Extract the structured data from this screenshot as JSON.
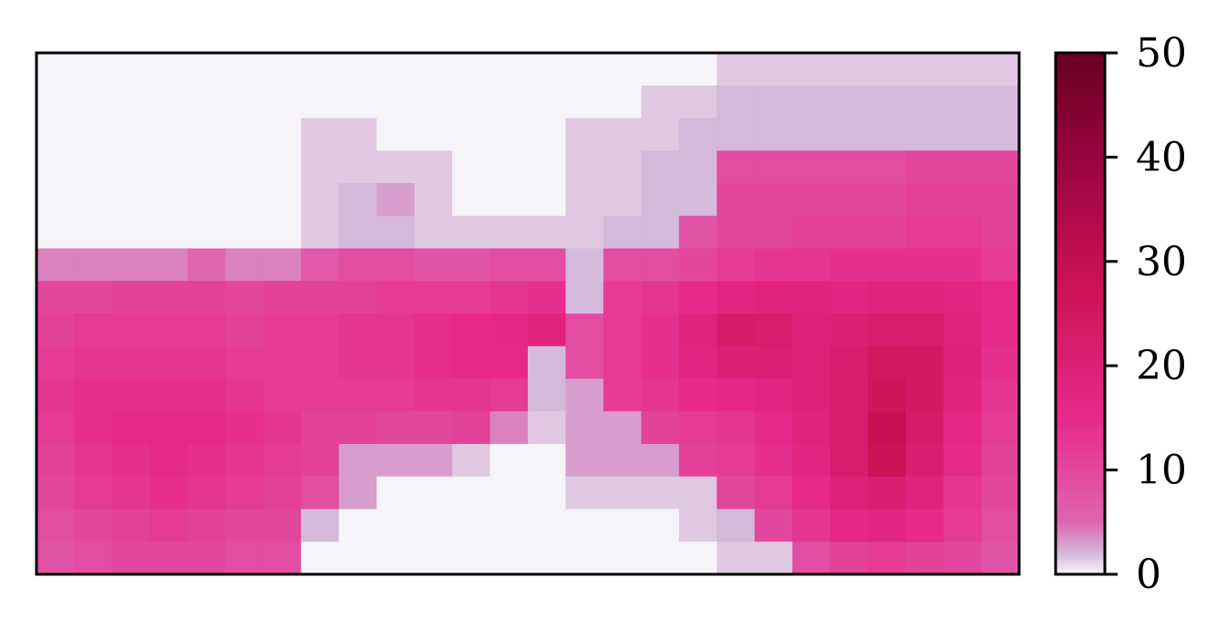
{
  "chart_data": {
    "type": "heatmap",
    "title": "",
    "xlabel": "",
    "ylabel": "",
    "x_ticks_visible": false,
    "y_ticks_visible": false,
    "colormap": "PuRd",
    "colorbar": {
      "range": [
        0,
        50
      ],
      "ticks": [
        "0",
        "10",
        "20",
        "30",
        "40",
        "50"
      ],
      "tick_values": [
        0,
        10,
        20,
        30,
        40,
        50
      ]
    },
    "grid": [
      [
        0,
        0,
        0,
        0,
        0,
        0,
        0,
        0,
        0,
        0,
        0,
        0,
        0,
        0,
        0,
        0,
        0,
        0,
        1,
        1,
        1,
        1,
        1,
        1,
        1,
        1
      ],
      [
        0,
        0,
        0,
        0,
        0,
        0,
        0,
        0,
        0,
        0,
        0,
        0,
        0,
        0,
        0,
        0,
        1,
        1,
        2,
        2,
        2,
        2,
        2,
        2,
        2,
        2
      ],
      [
        0,
        0,
        0,
        0,
        0,
        0,
        0,
        1,
        1,
        0,
        0,
        0,
        0,
        0,
        1,
        1,
        1,
        2,
        2,
        2,
        2,
        2,
        2,
        2,
        2,
        2
      ],
      [
        0,
        0,
        0,
        0,
        0,
        0,
        0,
        1,
        1,
        1,
        1,
        0,
        0,
        0,
        1,
        1,
        2,
        2,
        9,
        9,
        9,
        9,
        9,
        10,
        10,
        10
      ],
      [
        0,
        0,
        0,
        0,
        0,
        0,
        0,
        1,
        2,
        3,
        1,
        0,
        0,
        0,
        1,
        1,
        2,
        2,
        10,
        10,
        10,
        10,
        10,
        11,
        11,
        11
      ],
      [
        0,
        0,
        0,
        0,
        0,
        0,
        0,
        1,
        2,
        2,
        1,
        1,
        1,
        1,
        1,
        2,
        2,
        8,
        10,
        10,
        11,
        11,
        11,
        12,
        12,
        11
      ],
      [
        4,
        4,
        4,
        4,
        5,
        4,
        4,
        7,
        9,
        9,
        8,
        8,
        9,
        9,
        2,
        9,
        9,
        10,
        12,
        13,
        13,
        14,
        14,
        14,
        14,
        12
      ],
      [
        10,
        10,
        11,
        11,
        11,
        10,
        11,
        11,
        11,
        12,
        12,
        12,
        13,
        14,
        2,
        12,
        13,
        15,
        17,
        18,
        18,
        17,
        18,
        18,
        17,
        15
      ],
      [
        11,
        12,
        12,
        12,
        12,
        11,
        12,
        12,
        13,
        13,
        14,
        15,
        16,
        18,
        9,
        12,
        14,
        18,
        23,
        22,
        19,
        20,
        22,
        22,
        18,
        15
      ],
      [
        12,
        13,
        13,
        13,
        13,
        12,
        12,
        12,
        13,
        13,
        14,
        15,
        15,
        2,
        9,
        12,
        14,
        17,
        20,
        20,
        19,
        22,
        25,
        24,
        19,
        14
      ],
      [
        13,
        14,
        14,
        14,
        14,
        13,
        12,
        12,
        12,
        12,
        13,
        13,
        12,
        2,
        3,
        12,
        13,
        15,
        16,
        17,
        19,
        22,
        26,
        24,
        18,
        13
      ],
      [
        12,
        14,
        15,
        15,
        15,
        14,
        13,
        11,
        11,
        10,
        10,
        11,
        4,
        1,
        3,
        3,
        11,
        12,
        13,
        15,
        18,
        22,
        29,
        23,
        16,
        12
      ],
      [
        11,
        13,
        14,
        15,
        14,
        13,
        12,
        11,
        3,
        3,
        3,
        1,
        0,
        0,
        3,
        3,
        3,
        11,
        12,
        14,
        17,
        22,
        28,
        21,
        15,
        11
      ],
      [
        10,
        12,
        13,
        14,
        13,
        12,
        11,
        9,
        3,
        0,
        0,
        0,
        0,
        0,
        1,
        1,
        1,
        1,
        10,
        12,
        15,
        19,
        21,
        18,
        13,
        10
      ],
      [
        9,
        10,
        11,
        12,
        11,
        10,
        10,
        2,
        0,
        0,
        0,
        0,
        0,
        0,
        0,
        0,
        0,
        1,
        2,
        10,
        13,
        16,
        17,
        15,
        12,
        9
      ],
      [
        8,
        9,
        10,
        10,
        10,
        9,
        9,
        0,
        0,
        0,
        0,
        0,
        0,
        0,
        0,
        0,
        0,
        0,
        1,
        1,
        9,
        11,
        12,
        11,
        10,
        8
      ]
    ]
  }
}
